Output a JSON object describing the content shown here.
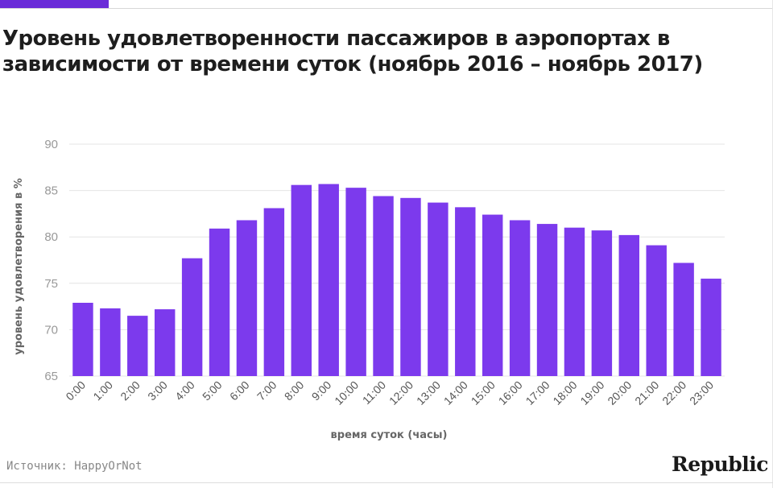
{
  "header": {
    "title": "Уровень удовлетворенности пассажиров в аэропортах в зависимости от времени суток (ноябрь 2016 – ноябрь 2017)"
  },
  "footer": {
    "source": "Источник: HappyOrNot",
    "brand": "Republic"
  },
  "colors": {
    "bar": "#7c3aed",
    "accent": "#6a2cd8",
    "grid": "#e4e4e4",
    "tick_text": "#999999",
    "axis_label": "#666666"
  },
  "chart_data": {
    "type": "bar",
    "title": "Уровень удовлетворенности пассажиров в аэропортах в зависимости от времени суток (ноябрь 2016 – ноябрь 2017)",
    "xlabel": "время суток (часы)",
    "ylabel": "уровень удовлетворения в %",
    "ylim": [
      65,
      90
    ],
    "yticks": [
      65,
      70,
      75,
      80,
      85,
      90
    ],
    "grid": true,
    "categories": [
      "0:00",
      "1:00",
      "2:00",
      "3:00",
      "4:00",
      "5:00",
      "6:00",
      "7:00",
      "8:00",
      "9:00",
      "10:00",
      "11:00",
      "12:00",
      "13:00",
      "14:00",
      "15:00",
      "16:00",
      "17:00",
      "18:00",
      "19:00",
      "20:00",
      "21:00",
      "22:00",
      "23:00"
    ],
    "values": [
      72.9,
      72.3,
      71.5,
      72.2,
      77.7,
      80.9,
      81.8,
      83.1,
      85.6,
      85.7,
      85.3,
      84.4,
      84.2,
      83.7,
      83.2,
      82.4,
      81.8,
      81.4,
      81.0,
      80.7,
      80.2,
      79.1,
      77.2,
      75.5
    ]
  }
}
